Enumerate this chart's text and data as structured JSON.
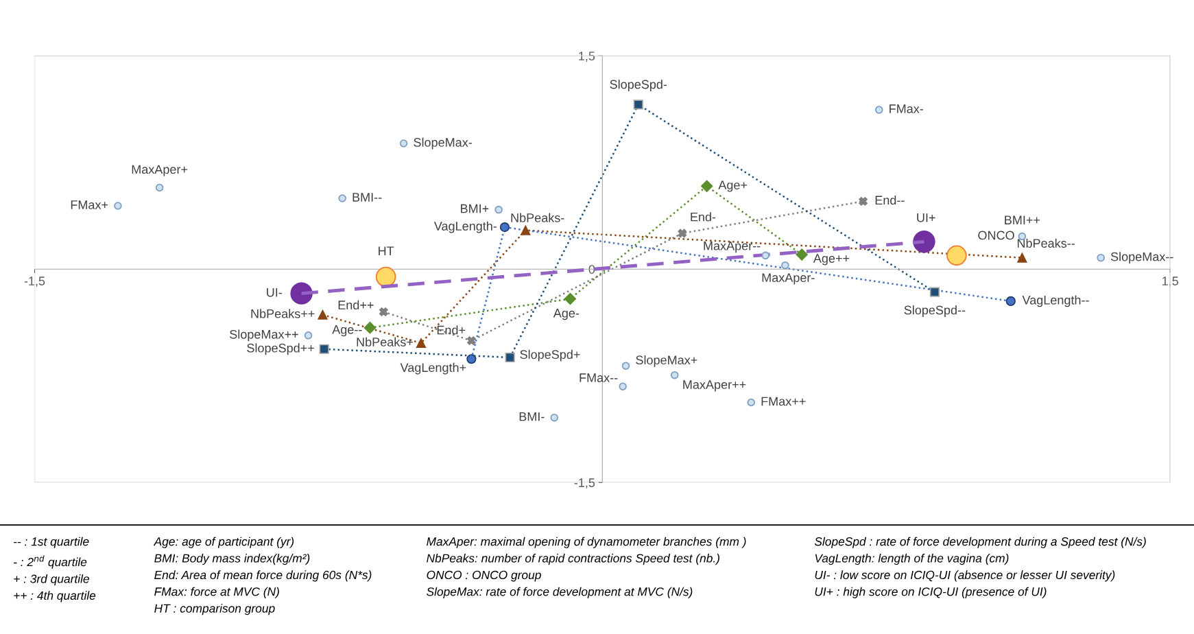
{
  "chart_data": {
    "type": "scatter",
    "xlim": [
      -1.5,
      1.5
    ],
    "ylim": [
      -1.5,
      1.5
    ],
    "xticks": [
      {
        "value": -1.5,
        "label": "-1,5"
      },
      {
        "value": 1.5,
        "label": "1,5"
      }
    ],
    "yticks": [
      {
        "value": 1.5,
        "label": "1,5"
      },
      0,
      {
        "value": -1.5,
        "label": "-1,5"
      }
    ],
    "grid": false,
    "series": [
      {
        "color": "#cfe2f3",
        "marker": "circle",
        "x": [
          0.731,
          -0.525,
          -1.17,
          -1.28,
          -0.687,
          -0.274,
          1.109,
          1.317,
          0.483,
          0.431,
          -0.777,
          0.062,
          0.054,
          0.191,
          0.393,
          -0.127
        ],
        "values": [
          1.12,
          0.884,
          0.573,
          0.445,
          0.498,
          0.418,
          0.23,
          0.08,
          0.027,
          0.096,
          -0.466,
          -0.68,
          -0.825,
          -0.745,
          -0.937,
          -1.044
        ]
      },
      {
        "type": "line",
        "color": "#5b8f2d",
        "marker": "diamond",
        "line_style": "dotted",
        "x": [
          -0.614,
          -0.085,
          0.276,
          0.527
        ],
        "values": [
          -0.412,
          -0.209,
          0.584,
          0.102
        ]
      },
      {
        "type": "line",
        "color": "#7f7f7f",
        "marker": "cross",
        "line_style": "dotted",
        "x": [
          -0.578,
          -0.346,
          0.211,
          0.689
        ],
        "values": [
          -0.3,
          -0.503,
          0.252,
          0.477
        ]
      },
      {
        "type": "line",
        "color": "#8b4513",
        "marker": "triangle",
        "line_style": "dotted",
        "x": [
          -0.739,
          -0.479,
          -0.203,
          1.109
        ],
        "values": [
          -0.321,
          -0.52,
          0.273,
          0.08
        ]
      },
      {
        "type": "line",
        "color": "#1f4e79",
        "marker": "square",
        "line_style": "dotted",
        "x": [
          -0.735,
          -0.244,
          0.095,
          0.878
        ],
        "values": [
          -0.562,
          -0.621,
          1.157,
          -0.161
        ]
      },
      {
        "type": "line",
        "color": "#4472c4",
        "marker": "circle",
        "line_style": "dotted",
        "x": [
          -0.346,
          -0.258,
          1.079
        ],
        "values": [
          -0.632,
          0.295,
          -0.225
        ]
      },
      {
        "type": "line",
        "color": "#9461c4",
        "marker": "none",
        "line_style": "dashed",
        "x": [
          -0.795,
          0.85
        ],
        "values": [
          -0.171,
          0.193
        ]
      },
      {
        "color": "#7030a0",
        "marker": "circle",
        "x": [
          -0.795,
          0.85
        ],
        "values": [
          -0.171,
          0.193
        ]
      },
      {
        "color": "#ffd966",
        "marker": "circle",
        "x": [
          -0.572,
          0.936
        ],
        "values": [
          -0.054,
          0.096
        ]
      }
    ],
    "annotations": [
      {
        "text": "FMax-",
        "x": 0.731,
        "y": 1.12
      },
      {
        "text": "SlopeMax-",
        "x": -0.525,
        "y": 0.884
      },
      {
        "text": "MaxAper+",
        "x": -1.17,
        "y": 0.573
      },
      {
        "text": "FMax+",
        "x": -1.28,
        "y": 0.445
      },
      {
        "text": "BMI--",
        "x": -0.687,
        "y": 0.498
      },
      {
        "text": "BMI+",
        "x": -0.274,
        "y": 0.418
      },
      {
        "text": "BMI++",
        "x": 1.109,
        "y": 0.23
      },
      {
        "text": "SlopeMax--",
        "x": 1.317,
        "y": 0.08
      },
      {
        "text": "MaxAper-",
        "x": 0.483,
        "y": 0.027
      },
      {
        "text": "MaxAper--",
        "x": 0.431,
        "y": 0.096
      },
      {
        "text": "SlopeMax++",
        "x": -0.777,
        "y": -0.466
      },
      {
        "text": "SlopeMax+",
        "x": 0.062,
        "y": -0.68
      },
      {
        "text": "FMax--",
        "x": 0.054,
        "y": -0.825
      },
      {
        "text": "MaxAper++",
        "x": 0.191,
        "y": -0.745
      },
      {
        "text": "FMax++",
        "x": 0.393,
        "y": -0.937
      },
      {
        "text": "BMI-",
        "x": -0.127,
        "y": -1.044
      },
      {
        "text": "Age--",
        "x": -0.614,
        "y": -0.412
      },
      {
        "text": "Age-",
        "x": -0.085,
        "y": -0.209
      },
      {
        "text": "Age+",
        "x": 0.276,
        "y": 0.584
      },
      {
        "text": "Age++",
        "x": 0.527,
        "y": 0.102
      },
      {
        "text": "End++",
        "x": -0.578,
        "y": -0.3
      },
      {
        "text": "End+",
        "x": -0.346,
        "y": -0.503
      },
      {
        "text": "End-",
        "x": 0.211,
        "y": 0.252
      },
      {
        "text": "End--",
        "x": 0.689,
        "y": 0.477
      },
      {
        "text": "NbPeaks++",
        "x": -0.739,
        "y": -0.321
      },
      {
        "text": "NbPeaks+",
        "x": -0.479,
        "y": -0.52
      },
      {
        "text": "NbPeaks-",
        "x": -0.203,
        "y": 0.273
      },
      {
        "text": "NbPeaks--",
        "x": 1.109,
        "y": 0.08
      },
      {
        "text": "SlopeSpd++",
        "x": -0.735,
        "y": -0.562
      },
      {
        "text": "SlopeSpd+",
        "x": -0.244,
        "y": -0.621
      },
      {
        "text": "SlopeSpd-",
        "x": 0.095,
        "y": 1.157
      },
      {
        "text": "SlopeSpd--",
        "x": 0.878,
        "y": -0.161
      },
      {
        "text": "VagLength+",
        "x": -0.346,
        "y": -0.632
      },
      {
        "text": "VagLength-",
        "x": -0.258,
        "y": 0.295
      },
      {
        "text": "VagLength--",
        "x": 1.079,
        "y": -0.225
      },
      {
        "text": "UI-",
        "x": -0.795,
        "y": -0.171
      },
      {
        "text": "UI+",
        "x": 0.85,
        "y": 0.193
      },
      {
        "text": "HT",
        "x": -0.572,
        "y": -0.054
      },
      {
        "text": "ONCO",
        "x": 0.936,
        "y": 0.096
      },
      "-- : 1st quartile\n- : 2$^{nd}$ quartile\n+ : 3rd quartile\n++ : 4th quartile",
      "Age: age of participant (yr)\nBMI: Body mass index(kg/m²)\nEnd: Area of mean force during 60s (N*s)\nFMax: force at MVC (N)\nHT : comparison group",
      "MaxAper: maximal opening of dynamometer branches (mm )\nNbPeaks: number of rapid contractions Speed test (nb.)\nONCO : ONCO group\nSlopeMax: rate of force development at MVC (N/s)",
      "SlopeSpd : rate of force development during a Speed test (N/s)\nVagLength: length of the vagina (cm)\nUI- : low score on ICIQ-UI (absence or lesser UI severity)\nUI+ : high score on ICIQ-UI (presence of UI)"
    ]
  }
}
